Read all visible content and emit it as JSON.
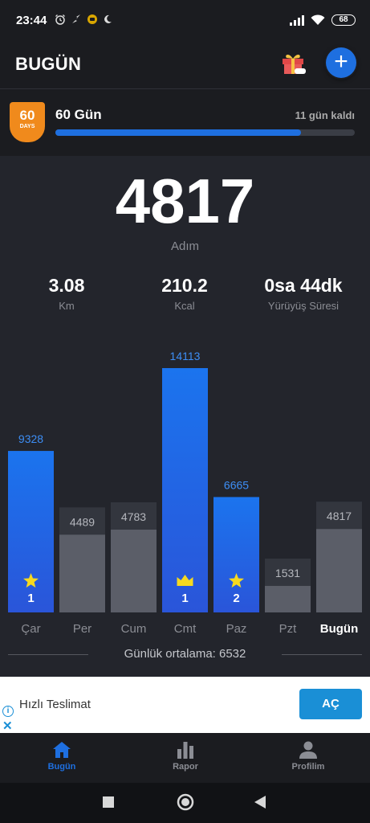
{
  "status_bar": {
    "time": "23:44",
    "battery": "68"
  },
  "app_bar": {
    "title": "BUGÜN",
    "add_label": "+"
  },
  "challenge": {
    "badge_number": "60",
    "badge_text": "DAYS",
    "title": "60 Gün",
    "remaining": "11 gün kaldı",
    "progress": 0.82
  },
  "summary": {
    "steps": "4817",
    "steps_label": "Adım",
    "stats": [
      {
        "value": "3.08",
        "label": "Km"
      },
      {
        "value": "210.2",
        "label": "Kcal"
      },
      {
        "value": "0sa 44dk",
        "label": "Yürüyüş Süresi"
      }
    ]
  },
  "chart_data": {
    "type": "bar",
    "categories": [
      "Çar",
      "Per",
      "Cum",
      "Cmt",
      "Paz",
      "Pzt",
      "Bugün"
    ],
    "values": [
      9328,
      4489,
      4783,
      14113,
      6665,
      1531,
      4817
    ],
    "goal_reached": [
      true,
      false,
      false,
      true,
      true,
      false,
      false
    ],
    "rewards": [
      {
        "icon": "star-icon",
        "count": "1"
      },
      null,
      null,
      {
        "icon": "crown-icon",
        "count": "1"
      },
      {
        "icon": "star-icon",
        "count": "2"
      },
      null,
      null
    ],
    "colors": {
      "goal": "#1e6fe0",
      "normal": "#5b5e68",
      "track": "#33363e",
      "goal_label": "#3d8ef5",
      "normal_label": "#b5b7bd"
    }
  },
  "average": {
    "text": "Günlük ortalama: 6532"
  },
  "ad": {
    "text": "Hızlı Teslimat",
    "button": "AÇ"
  },
  "tabs": [
    {
      "label": "Bugün",
      "icon": "home-icon",
      "active": true
    },
    {
      "label": "Rapor",
      "icon": "bar-chart-icon",
      "active": false
    },
    {
      "label": "Profilim",
      "icon": "person-icon",
      "active": false
    }
  ]
}
